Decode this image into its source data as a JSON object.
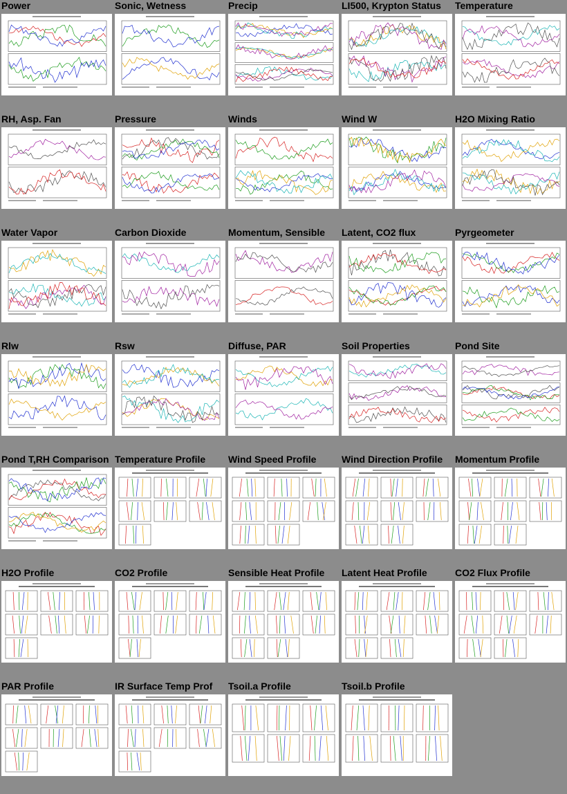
{
  "panels": [
    {
      "title": "Power",
      "kind": "ts2"
    },
    {
      "title": "Sonic, Wetness",
      "kind": "ts2"
    },
    {
      "title": "Precip",
      "kind": "ts3"
    },
    {
      "title": "LI500, Krypton Status",
      "kind": "ts2"
    },
    {
      "title": "Temperature",
      "kind": "ts2"
    },
    {
      "title": "RH, Asp. Fan",
      "kind": "ts2"
    },
    {
      "title": "Pressure",
      "kind": "ts2"
    },
    {
      "title": "Winds",
      "kind": "ts2"
    },
    {
      "title": "Wind W",
      "kind": "ts2"
    },
    {
      "title": "H2O Mixing Ratio",
      "kind": "ts2"
    },
    {
      "title": "Water Vapor",
      "kind": "ts2"
    },
    {
      "title": "Carbon Dioxide",
      "kind": "ts2"
    },
    {
      "title": "Momentum, Sensible",
      "kind": "ts2"
    },
    {
      "title": "Latent, CO2 flux",
      "kind": "ts2"
    },
    {
      "title": "Pyrgeometer",
      "kind": "ts2"
    },
    {
      "title": "Rlw",
      "kind": "ts2"
    },
    {
      "title": "Rsw",
      "kind": "ts2"
    },
    {
      "title": "Diffuse, PAR",
      "kind": "ts2"
    },
    {
      "title": "Soil Properties",
      "kind": "ts3"
    },
    {
      "title": "Pond Site",
      "kind": "ts3"
    },
    {
      "title": "Pond T,RH Comparison",
      "kind": "ts2"
    },
    {
      "title": "Temperature Profile",
      "kind": "prof",
      "rows": 3,
      "last": 1
    },
    {
      "title": "Wind Speed Profile",
      "kind": "prof",
      "rows": 3,
      "last": 2
    },
    {
      "title": "Wind Direction Profile",
      "kind": "prof",
      "rows": 3,
      "last": 2
    },
    {
      "title": "Momentum Profile",
      "kind": "prof",
      "rows": 3,
      "last": 2
    },
    {
      "title": "H2O Profile",
      "kind": "prof",
      "rows": 3,
      "last": 1
    },
    {
      "title": "CO2 Profile",
      "kind": "prof",
      "rows": 3,
      "last": 1
    },
    {
      "title": "Sensible Heat Profile",
      "kind": "prof",
      "rows": 3,
      "last": 2
    },
    {
      "title": "Latent Heat Profile",
      "kind": "prof",
      "rows": 3,
      "last": 2
    },
    {
      "title": "CO2 Flux Profile",
      "kind": "prof",
      "rows": 3,
      "last": 2
    },
    {
      "title": "PAR Profile",
      "kind": "prof",
      "rows": 3,
      "last": 1
    },
    {
      "title": "IR Surface Temp Prof",
      "kind": "prof",
      "rows": 3,
      "last": 1
    },
    {
      "title": "Tsoil.a Profile",
      "kind": "prof",
      "rows": 2,
      "last": 3
    },
    {
      "title": "Tsoil.b Profile",
      "kind": "prof",
      "rows": 2,
      "last": 3
    }
  ],
  "colors": {
    "background": "#8c8c8c",
    "series": [
      "#d62020",
      "#1a9b1a",
      "#2030d0",
      "#e0a000",
      "#18b4b4",
      "#a020a0",
      "#505050"
    ]
  }
}
